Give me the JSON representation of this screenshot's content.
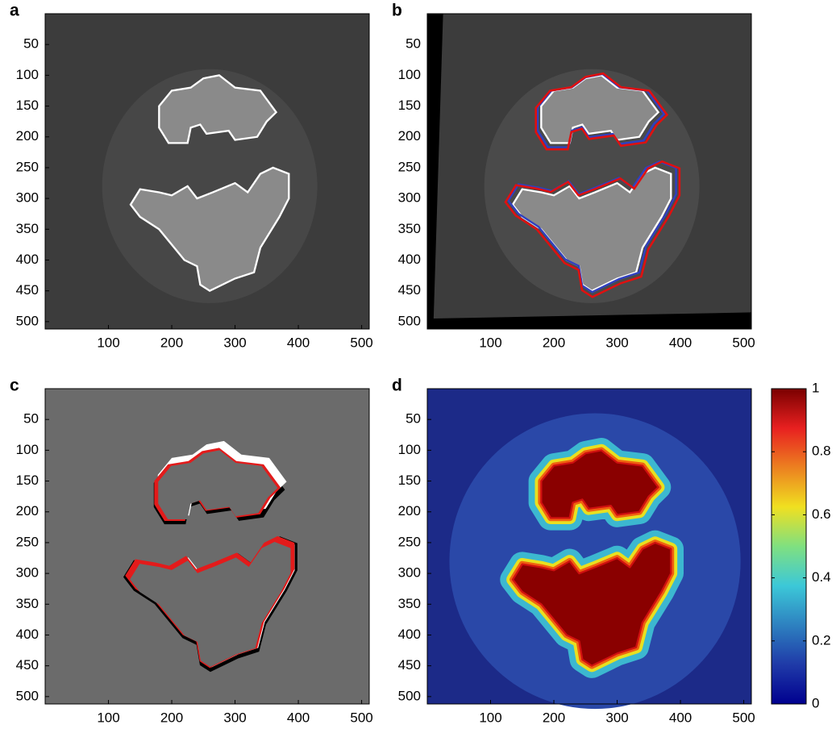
{
  "chart_data": [
    {
      "type": "image",
      "label": "a",
      "xlim": [
        0,
        512
      ],
      "ylim": [
        0,
        512
      ],
      "y_reversed": true,
      "xticks": [
        100,
        200,
        300,
        400,
        500
      ],
      "yticks": [
        50,
        100,
        150,
        200,
        250,
        300,
        350,
        400,
        450,
        500
      ]
    },
    {
      "type": "image",
      "label": "b",
      "xlim": [
        0,
        512
      ],
      "ylim": [
        0,
        512
      ],
      "y_reversed": true,
      "xticks": [
        100,
        200,
        300,
        400,
        500
      ],
      "yticks": [
        50,
        100,
        150,
        200,
        250,
        300,
        350,
        400,
        450,
        500
      ]
    },
    {
      "type": "image",
      "label": "c",
      "xlim": [
        0,
        512
      ],
      "ylim": [
        0,
        512
      ],
      "y_reversed": true,
      "xticks": [
        100,
        200,
        300,
        400,
        500
      ],
      "yticks": [
        50,
        100,
        150,
        200,
        250,
        300,
        350,
        400,
        450,
        500
      ]
    },
    {
      "type": "image",
      "label": "d",
      "xlim": [
        0,
        512
      ],
      "ylim": [
        0,
        512
      ],
      "y_reversed": true,
      "xticks": [
        100,
        200,
        300,
        400,
        500
      ],
      "yticks": [
        50,
        100,
        150,
        200,
        250,
        300,
        350,
        400,
        450,
        500
      ],
      "colorbar": {
        "clim": [
          0,
          1
        ],
        "ticks": [
          0,
          0.2,
          0.4,
          0.6,
          0.8,
          1
        ]
      }
    }
  ]
}
